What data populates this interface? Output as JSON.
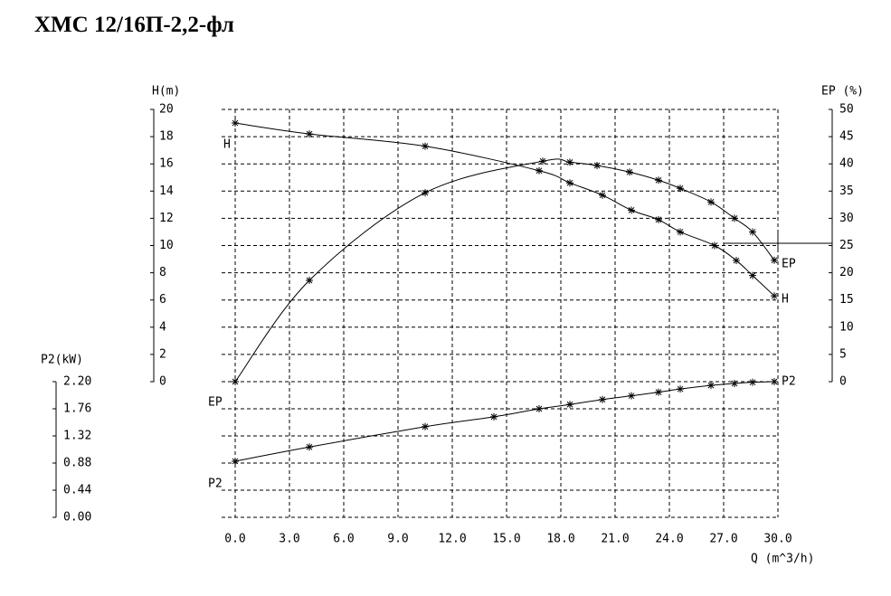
{
  "chart_data": {
    "type": "line",
    "title": "ХМС 12/16П-2,2-фл",
    "x_label": "Q (m^3/h)",
    "y_label": "H(m)",
    "y2_label": "EP (%)",
    "y3_label": "P2(kW)",
    "xlim": [
      0,
      30
    ],
    "xticks": [
      {
        "value": 0,
        "label": "0.0"
      },
      {
        "value": 3,
        "label": "3.0"
      },
      {
        "value": 6,
        "label": "6.0"
      },
      {
        "value": 9,
        "label": "9.0"
      },
      {
        "value": 12,
        "label": "12.0"
      },
      {
        "value": 15,
        "label": "15.0"
      },
      {
        "value": 18,
        "label": "18.0"
      },
      {
        "value": 21,
        "label": "21.0"
      },
      {
        "value": 24,
        "label": "24.0"
      },
      {
        "value": 27,
        "label": "27.0"
      },
      {
        "value": 30,
        "label": "30.0"
      }
    ],
    "ylim": [
      0,
      20
    ],
    "yticks": [
      0,
      2,
      4,
      6,
      8,
      10,
      12,
      14,
      16,
      18,
      20
    ],
    "y2lim": [
      0,
      50
    ],
    "y2ticks": [
      0,
      5,
      10,
      15,
      20,
      25,
      30,
      35,
      40,
      45,
      50
    ],
    "y3lim": [
      0,
      2.2
    ],
    "y3ticks": [
      {
        "value": 0,
        "label": "0.00"
      },
      {
        "value": 0.44,
        "label": "0.44"
      },
      {
        "value": 0.88,
        "label": "0.88"
      },
      {
        "value": 1.32,
        "label": "1.32"
      },
      {
        "value": 1.76,
        "label": "1.76"
      },
      {
        "value": 2.2,
        "label": "2.20"
      }
    ],
    "grid": true,
    "series": [
      {
        "name": "H",
        "axis": "y",
        "color": "#000000",
        "x": [
          0,
          4.1,
          10.5,
          16.8,
          18.5,
          20.3,
          21.9,
          23.4,
          24.6,
          26.5,
          27.7,
          28.6,
          29.8
        ],
        "values": [
          19.0,
          18.2,
          17.3,
          15.5,
          14.6,
          13.7,
          12.6,
          11.9,
          11.0,
          10.0,
          8.9,
          7.8,
          6.3
        ]
      },
      {
        "name": "EP",
        "axis": "y2",
        "color": "#000000",
        "x": [
          0,
          4.1,
          10.5,
          17.0,
          18.5,
          20.0,
          21.8,
          23.4,
          24.6,
          26.3,
          27.6,
          28.6,
          29.8
        ],
        "values": [
          0,
          18.6,
          34.7,
          40.5,
          40.3,
          39.7,
          38.5,
          37.0,
          35.5,
          33.0,
          30.0,
          27.5,
          22.3
        ]
      },
      {
        "name": "P2",
        "axis": "y3",
        "color": "#000000",
        "x": [
          0,
          4.1,
          10.5,
          14.3,
          16.8,
          18.5,
          20.3,
          21.9,
          23.4,
          24.6,
          26.3,
          27.6,
          28.6,
          29.8
        ],
        "values": [
          0.91,
          1.14,
          1.47,
          1.63,
          1.76,
          1.83,
          1.91,
          1.97,
          2.03,
          2.08,
          2.14,
          2.17,
          2.19,
          2.2
        ]
      }
    ]
  }
}
